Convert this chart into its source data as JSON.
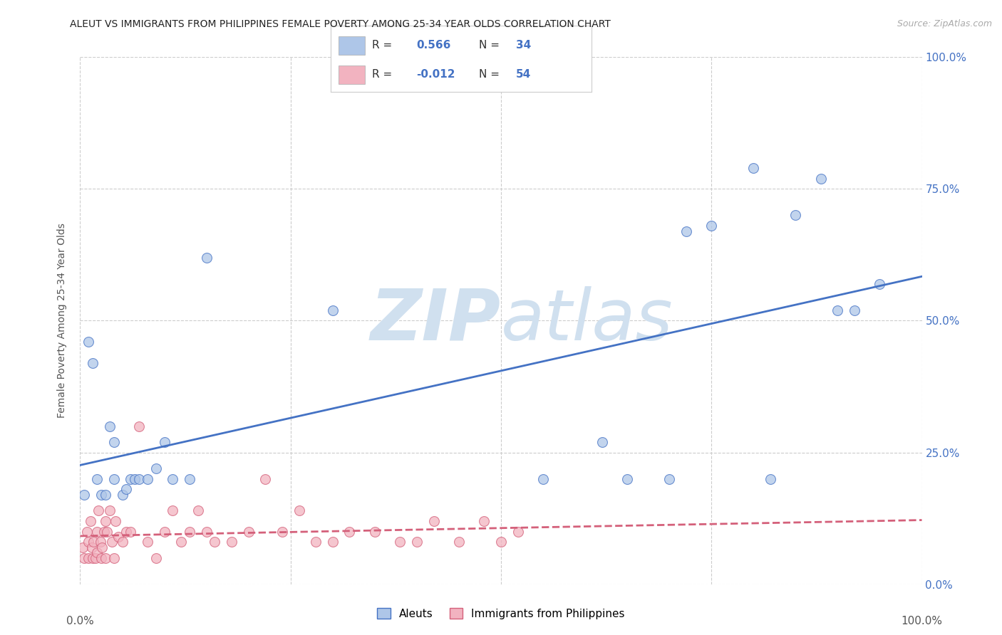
{
  "title": "ALEUT VS IMMIGRANTS FROM PHILIPPINES FEMALE POVERTY AMONG 25-34 YEAR OLDS CORRELATION CHART",
  "source": "Source: ZipAtlas.com",
  "ylabel": "Female Poverty Among 25-34 Year Olds",
  "legend_label1": "Aleuts",
  "legend_label2": "Immigrants from Philippines",
  "R1": "0.566",
  "N1": "34",
  "R2": "-0.012",
  "N2": "54",
  "aleuts_color": "#aec6e8",
  "philippines_color": "#f2b3c0",
  "line1_color": "#4472c4",
  "line2_color": "#d4607a",
  "background_color": "#ffffff",
  "grid_color": "#cccccc",
  "watermark_color": "#d0e0ef",
  "aleuts_x": [
    0.5,
    1.0,
    1.5,
    2.0,
    2.5,
    3.0,
    3.5,
    4.0,
    4.0,
    5.0,
    5.5,
    6.0,
    6.5,
    7.0,
    8.0,
    9.0,
    10.0,
    11.0,
    13.0,
    15.0,
    30.0,
    55.0,
    62.0,
    65.0,
    70.0,
    72.0,
    75.0,
    80.0,
    82.0,
    85.0,
    88.0,
    90.0,
    92.0,
    95.0
  ],
  "aleuts_y": [
    17.0,
    46.0,
    42.0,
    20.0,
    17.0,
    17.0,
    30.0,
    20.0,
    27.0,
    17.0,
    18.0,
    20.0,
    20.0,
    20.0,
    20.0,
    22.0,
    27.0,
    20.0,
    20.0,
    62.0,
    52.0,
    20.0,
    27.0,
    20.0,
    20.0,
    67.0,
    68.0,
    79.0,
    20.0,
    70.0,
    77.0,
    52.0,
    52.0,
    57.0
  ],
  "philippines_x": [
    0.3,
    0.5,
    0.8,
    1.0,
    1.0,
    1.2,
    1.4,
    1.5,
    1.6,
    1.8,
    2.0,
    2.0,
    2.2,
    2.4,
    2.5,
    2.6,
    2.8,
    3.0,
    3.0,
    3.2,
    3.5,
    3.8,
    4.0,
    4.2,
    4.5,
    5.0,
    5.5,
    6.0,
    7.0,
    8.0,
    9.0,
    10.0,
    11.0,
    12.0,
    13.0,
    14.0,
    15.0,
    16.0,
    18.0,
    20.0,
    22.0,
    24.0,
    26.0,
    28.0,
    30.0,
    32.0,
    35.0,
    38.0,
    40.0,
    42.0,
    45.0,
    48.0,
    50.0,
    52.0
  ],
  "philippines_y": [
    7.0,
    5.0,
    10.0,
    8.0,
    5.0,
    12.0,
    7.0,
    5.0,
    8.0,
    5.0,
    10.0,
    6.0,
    14.0,
    8.0,
    5.0,
    7.0,
    10.0,
    12.0,
    5.0,
    10.0,
    14.0,
    8.0,
    5.0,
    12.0,
    9.0,
    8.0,
    10.0,
    10.0,
    30.0,
    8.0,
    5.0,
    10.0,
    14.0,
    8.0,
    10.0,
    14.0,
    10.0,
    8.0,
    8.0,
    10.0,
    20.0,
    10.0,
    14.0,
    8.0,
    8.0,
    10.0,
    10.0,
    8.0,
    8.0,
    12.0,
    8.0,
    12.0,
    8.0,
    10.0
  ],
  "xmin": 0,
  "xmax": 100,
  "ymin": 0,
  "ymax": 100,
  "xtick_pct": [
    0.0,
    100.0
  ],
  "ytick_pct": [
    0.0,
    25.0,
    50.0,
    75.0,
    100.0
  ]
}
